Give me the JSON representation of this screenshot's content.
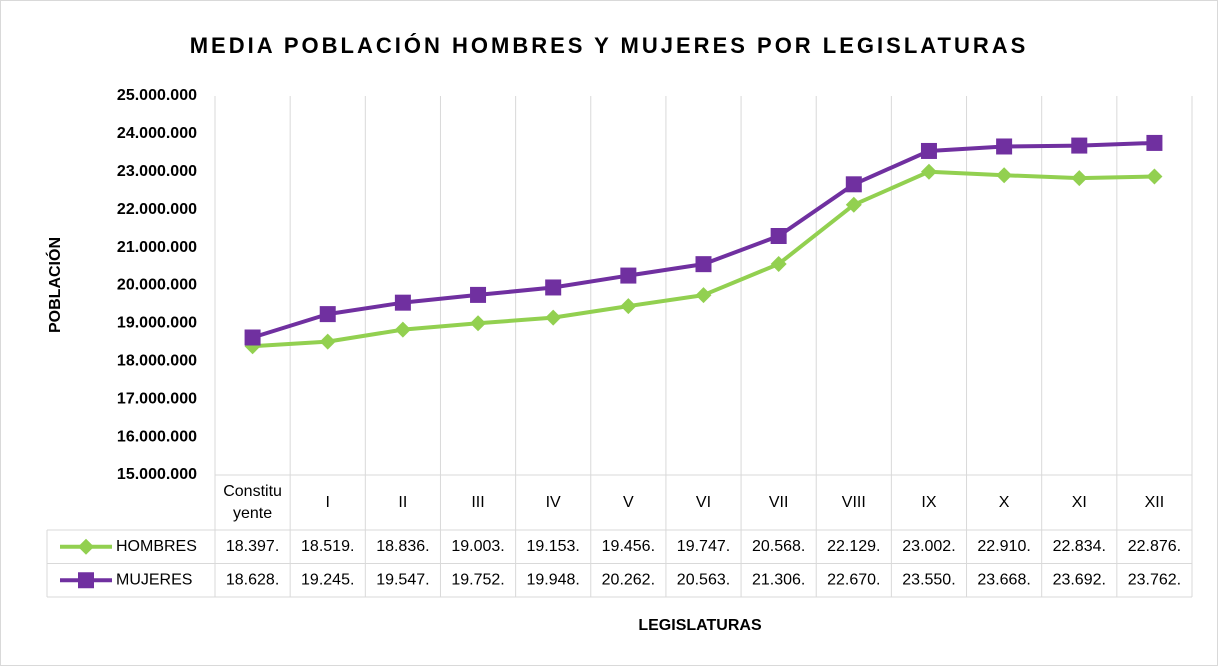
{
  "chart_data": {
    "type": "line",
    "title": "MEDIA POBLACIÓN HOMBRES Y MUJERES POR LEGISLATURAS",
    "y_label": "POBLACIÓN",
    "x_label": "LEGISLATURAS",
    "categories": [
      "Constituyente",
      "I",
      "II",
      "III",
      "IV",
      "V",
      "VI",
      "VII",
      "VIII",
      "IX",
      "X",
      "XI",
      "XII"
    ],
    "series": [
      {
        "name": "HOMBRES",
        "color": "#92d050",
        "marker": "diamond",
        "values": [
          18397000,
          18519000,
          18836000,
          19003000,
          19153000,
          19456000,
          19747000,
          20568000,
          22129000,
          23002000,
          22910000,
          22834000,
          22876000
        ],
        "value_labels": [
          "18.397.",
          "18.519.",
          "18.836.",
          "19.003.",
          "19.153.",
          "19.456.",
          "19.747.",
          "20.568.",
          "22.129.",
          "23.002.",
          "22.910.",
          "22.834.",
          "22.876."
        ]
      },
      {
        "name": "MUJERES",
        "color": "#7030a0",
        "marker": "square",
        "values": [
          18628000,
          19245000,
          19547000,
          19752000,
          19948000,
          20262000,
          20563000,
          21306000,
          22670000,
          23550000,
          23668000,
          23692000,
          23762000
        ],
        "value_labels": [
          "18.628.",
          "19.245.",
          "19.547.",
          "19.752.",
          "19.948.",
          "20.262.",
          "20.563.",
          "21.306.",
          "22.670.",
          "23.550.",
          "23.668.",
          "23.692.",
          "23.762."
        ]
      }
    ],
    "ylim": [
      15000000,
      25000000
    ],
    "yticks": [
      {
        "value": 15000000,
        "label": "15.000.000"
      },
      {
        "value": 16000000,
        "label": "16.000.000"
      },
      {
        "value": 17000000,
        "label": "17.000.000"
      },
      {
        "value": 18000000,
        "label": "18.000.000"
      },
      {
        "value": 19000000,
        "label": "19.000.000"
      },
      {
        "value": 20000000,
        "label": "20.000.000"
      },
      {
        "value": 21000000,
        "label": "21.000.000"
      },
      {
        "value": 22000000,
        "label": "22.000.000"
      },
      {
        "value": 23000000,
        "label": "23.000.000"
      },
      {
        "value": 24000000,
        "label": "24.000.000"
      },
      {
        "value": 25000000,
        "label": "25.000.000"
      }
    ],
    "grid": false
  }
}
